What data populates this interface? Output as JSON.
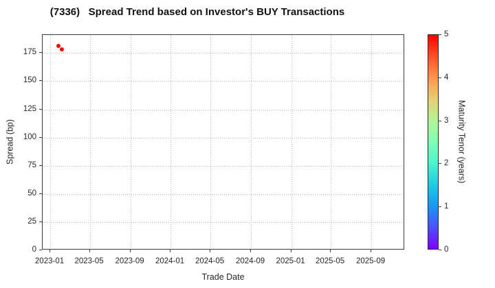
{
  "chart_data": {
    "type": "scatter",
    "title": "(7336)   Spread Trend based on Investor's BUY Transactions",
    "xlabel": "Trade Date",
    "ylabel": "Spread (bp)",
    "x_tick_labels": [
      "2023-01",
      "2023-05",
      "2023-09",
      "2024-01",
      "2024-05",
      "2024-09",
      "2025-01",
      "2025-05",
      "2025-09"
    ],
    "y_ticks": [
      0,
      25,
      50,
      75,
      100,
      125,
      150,
      175
    ],
    "xlim": [
      "2022-12-09",
      "2025-12-12"
    ],
    "ylim": [
      0,
      191
    ],
    "grid": true,
    "grid_style": "dotted",
    "marker_color_hint": "#ff0000",
    "points": [
      {
        "trade_date": "2023-01-27",
        "spread_bp": 181.5,
        "maturity_tenor_years": 5.0
      },
      {
        "trade_date": "2023-02-06",
        "spread_bp": 178.5,
        "maturity_tenor_years": 5.0
      }
    ],
    "colorbar": {
      "label": "Maturity Tenor (years)",
      "ticks": [
        0,
        1,
        2,
        3,
        4,
        5
      ],
      "min": 0,
      "max": 5,
      "colormap": "rainbow",
      "stops": [
        "#8000ff",
        "#4d4ffc",
        "#1a96f3",
        "#1acee3",
        "#4df3ce",
        "#80ffb4",
        "#b3f396",
        "#e6ce74",
        "#ff964f",
        "#ff4f28",
        "#ff0000"
      ]
    }
  }
}
